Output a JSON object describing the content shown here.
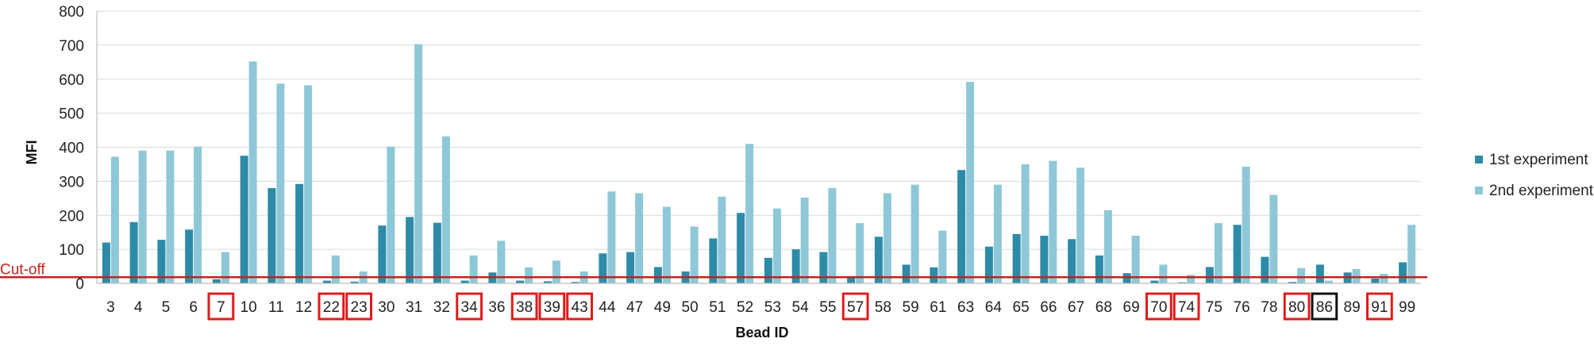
{
  "chart_data": {
    "type": "bar",
    "xlabel": "Bead ID",
    "ylabel": "MFI",
    "ylim": [
      0,
      800
    ],
    "yticks": [
      0,
      100,
      200,
      300,
      400,
      500,
      600,
      700,
      800
    ],
    "grid": true,
    "legend_position": "right",
    "categories": [
      "3",
      "4",
      "5",
      "6",
      "7",
      "10",
      "11",
      "12",
      "22",
      "23",
      "30",
      "31",
      "32",
      "34",
      "36",
      "38",
      "39",
      "43",
      "44",
      "47",
      "49",
      "50",
      "51",
      "52",
      "53",
      "54",
      "55",
      "57",
      "58",
      "59",
      "61",
      "63",
      "64",
      "65",
      "66",
      "67",
      "68",
      "69",
      "70",
      "74",
      "75",
      "76",
      "78",
      "80",
      "86",
      "89",
      "91",
      "99"
    ],
    "series": [
      {
        "name": "1st experiment",
        "color": "#2e8ba8",
        "values": [
          120,
          180,
          128,
          158,
          12,
          375,
          280,
          292,
          8,
          5,
          170,
          195,
          178,
          8,
          32,
          8,
          6,
          4,
          88,
          92,
          48,
          35,
          132,
          207,
          75,
          100,
          92,
          20,
          137,
          55,
          47,
          333,
          108,
          145,
          140,
          130,
          82,
          30,
          8,
          3,
          48,
          172,
          78,
          4,
          55,
          32,
          14,
          62
        ]
      },
      {
        "name": "2nd experiment",
        "color": "#8ec8d8",
        "values": [
          372,
          390,
          390,
          402,
          92,
          652,
          587,
          582,
          82,
          35,
          402,
          703,
          432,
          82,
          125,
          47,
          67,
          35,
          270,
          265,
          225,
          167,
          255,
          410,
          220,
          252,
          280,
          177,
          265,
          290,
          155,
          592,
          290,
          350,
          360,
          340,
          215,
          140,
          55,
          25,
          177,
          343,
          260,
          45,
          8,
          42,
          28,
          172
        ]
      }
    ],
    "cutoff": {
      "label": "Cut-off",
      "value": 18,
      "color": "#c42020"
    },
    "highlighted_red": [
      "7",
      "22",
      "23",
      "34",
      "38",
      "39",
      "43",
      "57",
      "70",
      "74",
      "80",
      "91"
    ],
    "highlighted_black": [
      "86"
    ],
    "highlight_colors": {
      "red": "#e01b1b",
      "black": "#111111"
    }
  }
}
